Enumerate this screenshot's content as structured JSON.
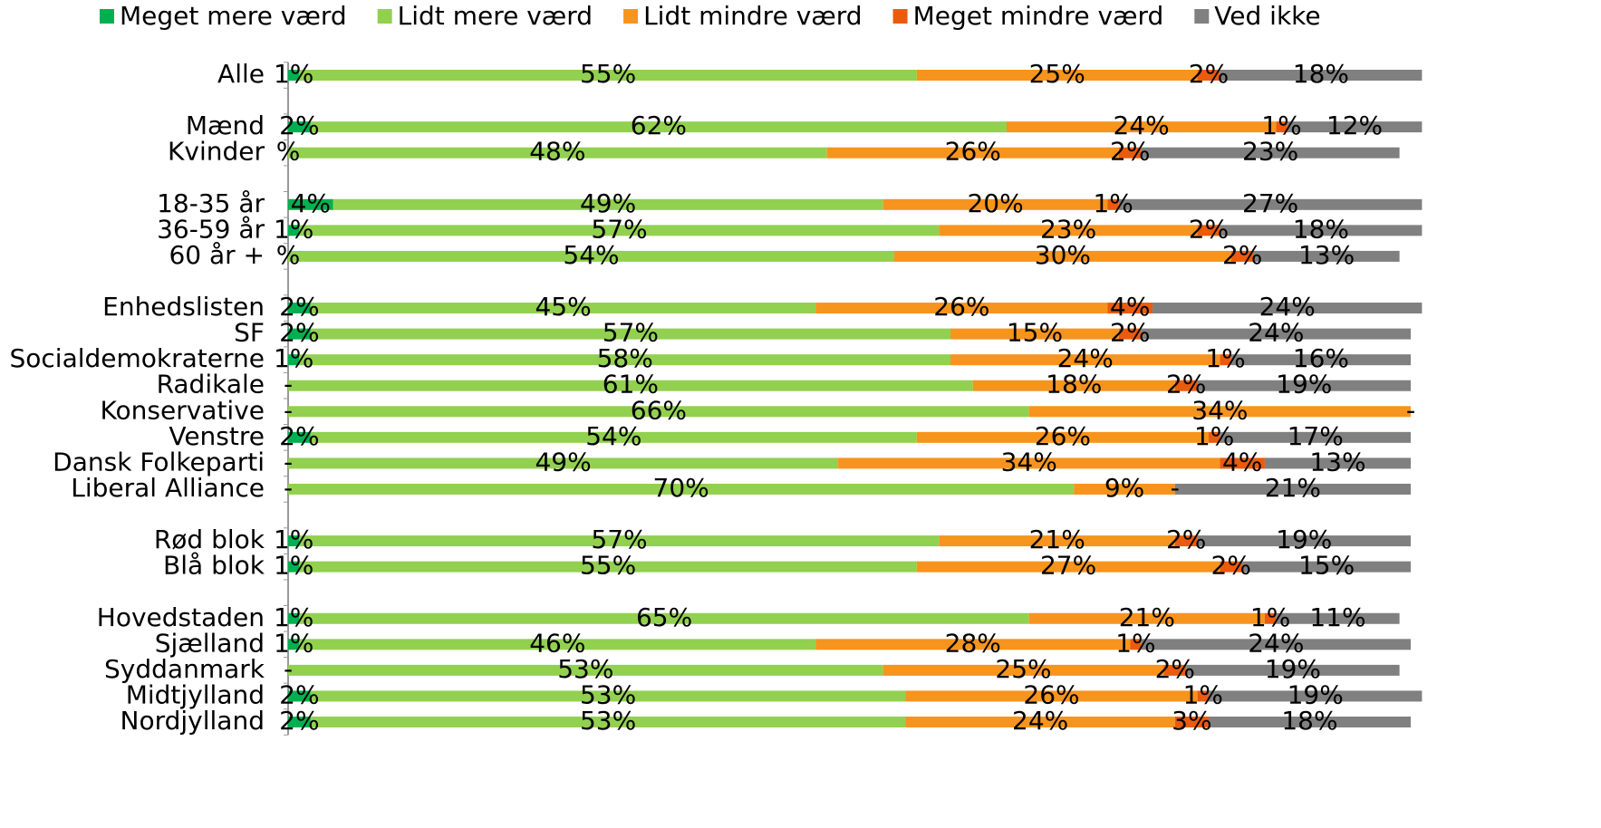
{
  "chart_data": {
    "type": "stacked-barh",
    "categories": [
      "Alle",
      null,
      "Mænd",
      "Kvinder",
      null,
      "18-35 år",
      "36-59 år",
      "60 år +",
      null,
      "Enhedslisten",
      "SF",
      "Socialdemokraterne",
      "Radikale",
      "Konservative",
      "Venstre",
      "Dansk Folkeparti",
      "Liberal Alliance",
      null,
      "Rød blok",
      "Blå blok",
      null,
      "Hovedstaden",
      "Sjælland",
      "Syddanmark",
      "Midtjylland",
      "Nordjylland"
    ],
    "series": [
      {
        "name": "Meget mere værd",
        "color": "#00b050",
        "values": [
          1,
          null,
          2,
          0,
          null,
          4,
          1,
          0,
          null,
          2,
          2,
          1,
          0,
          0,
          2,
          0,
          0,
          null,
          1,
          1,
          null,
          1,
          1,
          0,
          2,
          2
        ],
        "value_labels": [
          "1%",
          null,
          "2%",
          "%",
          null,
          "4%",
          "1%",
          "%",
          null,
          "2%",
          "2%",
          "1%",
          "-",
          "-",
          "2%",
          "-",
          "-",
          null,
          "1%",
          "1%",
          null,
          "1%",
          "1%",
          "-",
          "2%",
          "2%"
        ]
      },
      {
        "name": "Lidt mere værd",
        "color": "#92d050",
        "values": [
          55,
          null,
          62,
          48,
          null,
          49,
          57,
          54,
          null,
          45,
          57,
          58,
          61,
          66,
          54,
          49,
          70,
          null,
          57,
          55,
          null,
          65,
          46,
          53,
          53,
          53
        ],
        "value_labels": [
          "55%",
          null,
          "62%",
          "48%",
          null,
          "49%",
          "57%",
          "54%",
          null,
          "45%",
          "57%",
          "58%",
          "61%",
          "66%",
          "54%",
          "49%",
          "70%",
          null,
          "57%",
          "55%",
          null,
          "65%",
          "46%",
          "53%",
          "53%",
          "53%"
        ]
      },
      {
        "name": "Lidt mindre værd",
        "color": "#f7941d",
        "values": [
          25,
          null,
          24,
          26,
          null,
          20,
          23,
          30,
          null,
          26,
          15,
          24,
          18,
          34,
          26,
          34,
          9,
          null,
          21,
          27,
          null,
          21,
          28,
          25,
          26,
          24
        ],
        "value_labels": [
          "25%",
          null,
          "24%",
          "26%",
          null,
          "20%",
          "23%",
          "30%",
          null,
          "26%",
          "15%",
          "24%",
          "18%",
          "34%",
          "26%",
          "34%",
          "9%",
          null,
          "21%",
          "27%",
          null,
          "21%",
          "28%",
          "25%",
          "26%",
          "24%"
        ]
      },
      {
        "name": "Meget mindre værd",
        "color": "#ea5b0c",
        "values": [
          2,
          null,
          1,
          2,
          null,
          1,
          2,
          2,
          null,
          4,
          2,
          1,
          2,
          0,
          1,
          4,
          0,
          null,
          2,
          2,
          null,
          1,
          1,
          2,
          1,
          3
        ],
        "value_labels": [
          "2%",
          null,
          "1%",
          "2%",
          null,
          "1%",
          "2%",
          "2%",
          null,
          "4%",
          "2%",
          "1%",
          "2%",
          "-",
          "1%",
          "4%",
          "-",
          null,
          "2%",
          "2%",
          null,
          "1%",
          "1%",
          "2%",
          "1%",
          "3%"
        ]
      },
      {
        "name": "Ved ikke",
        "color": "#808080",
        "values": [
          18,
          null,
          12,
          23,
          null,
          27,
          18,
          13,
          null,
          24,
          24,
          16,
          19,
          0,
          17,
          13,
          21,
          null,
          19,
          15,
          null,
          11,
          24,
          19,
          19,
          18
        ],
        "value_labels": [
          "18%",
          null,
          "12%",
          "23%",
          null,
          "27%",
          "18%",
          "13%",
          null,
          "24%",
          "24%",
          "16%",
          "19%",
          "-",
          "17%",
          "13%",
          "21%",
          null,
          "19%",
          "15%",
          null,
          "11%",
          "24%",
          "19%",
          "19%",
          "18%"
        ]
      }
    ],
    "xlim": [
      0,
      100
    ],
    "legend": "top"
  }
}
